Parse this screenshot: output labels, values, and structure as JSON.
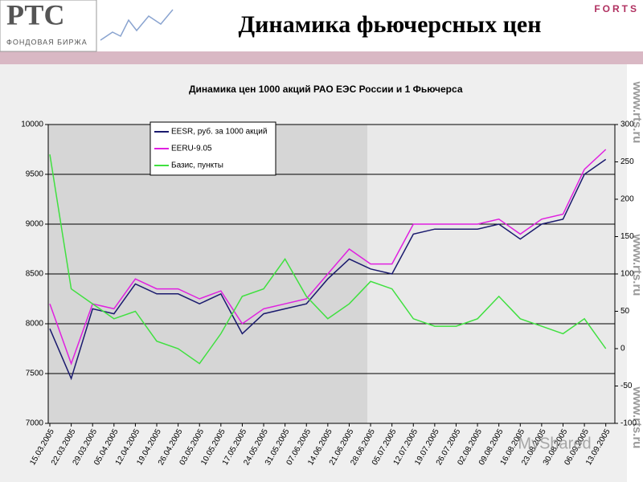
{
  "header": {
    "logo": "РТС",
    "logo_subtitle": "ФОНДОВАЯ БИРЖА",
    "title": "Динамика фьючерсных цен",
    "brand": "FORTS",
    "side_text": "www.rts.ru",
    "watermark": "MyShared"
  },
  "chart_data": {
    "type": "line",
    "title": "Динамика цен 1000 акций РАО ЕЭС России и 1 Фьючерса",
    "categories": [
      "15.03.2005",
      "22.03.2005",
      "29.03.2005",
      "05.04.2005",
      "12.04.2005",
      "19.04.2005",
      "26.04.2005",
      "03.05.2005",
      "10.05.2005",
      "17.05.2005",
      "24.05.2005",
      "31.05.2005",
      "07.06.2005",
      "14.06.2005",
      "21.06.2005",
      "28.06.2005",
      "05.07.2005",
      "12.07.2005",
      "19.07.2005",
      "26.07.2005",
      "02.08.2005",
      "09.08.2005",
      "16.08.2005",
      "23.08.2005",
      "30.08.2005",
      "06.09.2005",
      "13.09.2005"
    ],
    "series": [
      {
        "name": "EESR, руб. за 1000 акций",
        "color": "#1a1a6e",
        "values": [
          7950,
          7450,
          8150,
          8100,
          8400,
          8300,
          8300,
          8200,
          8300,
          7900,
          8100,
          8150,
          8200,
          8450,
          8650,
          8550,
          8500,
          8900,
          8950,
          8950,
          8950,
          9000,
          8850,
          9000,
          9050,
          9500,
          9650
        ]
      },
      {
        "name": "EERU-9.05",
        "color": "#e020e0",
        "values": [
          8200,
          7600,
          8200,
          8150,
          8450,
          8350,
          8350,
          8250,
          8330,
          8000,
          8150,
          8200,
          8250,
          8500,
          8750,
          8600,
          8600,
          9000,
          9000,
          9000,
          9000,
          9050,
          8900,
          9050,
          9100,
          9550,
          9750
        ]
      },
      {
        "name": "Базис, пункты",
        "color": "#40e040",
        "axis": "y2",
        "values": [
          260,
          80,
          60,
          40,
          50,
          10,
          0,
          -20,
          20,
          70,
          80,
          120,
          70,
          40,
          60,
          90,
          80,
          40,
          30,
          30,
          40,
          70,
          40,
          30,
          20,
          40,
          0
        ]
      }
    ],
    "ylim": [
      7000,
      10000
    ],
    "yticks": [
      7000,
      7500,
      8000,
      8500,
      9000,
      9500,
      10000
    ],
    "y2lim": [
      -100,
      300
    ],
    "y2ticks": [
      -100,
      -50,
      0,
      50,
      100,
      150,
      200,
      250,
      300
    ],
    "grid": true,
    "legend": "top-left"
  }
}
